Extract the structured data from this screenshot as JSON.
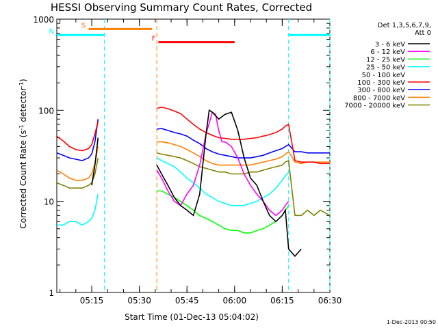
{
  "chart_data": {
    "type": "line",
    "title": "HESSI Observing Summary Count Rates, Corrected",
    "xlabel": "Start Time (01-Dec-13 05:04:02)",
    "ylabel_main": "Corrected Count Rate (s",
    "ylabel_sup1": "-1",
    "ylabel_mid": " detector",
    "ylabel_sup2": "-1",
    "ylabel_end": ")",
    "y_scale": "log",
    "ylim": [
      1,
      1000
    ],
    "xlim_minutes": [
      0,
      86
    ],
    "x_ticks": [
      {
        "t": 11,
        "label": "05:15"
      },
      {
        "t": 26,
        "label": "05:30"
      },
      {
        "t": 41,
        "label": "05:45"
      },
      {
        "t": 56,
        "label": "06:00"
      },
      {
        "t": 71,
        "label": "06:15"
      },
      {
        "t": 86,
        "label": "06:30"
      }
    ],
    "y_ticks": [
      {
        "v": 1,
        "label": "1"
      },
      {
        "v": 10,
        "label": "10"
      },
      {
        "v": 100,
        "label": "100"
      },
      {
        "v": 1000,
        "label": "1000"
      }
    ],
    "legend_header": [
      "Det 1,3,5,6,7,9,",
      "Att 0"
    ],
    "legend_position": "right",
    "footer": "1-Dec-2013 00:50",
    "flags": [
      {
        "label": "S",
        "color": "#ff7f00",
        "start": 10,
        "end": 30,
        "value": 780
      },
      {
        "label": "N",
        "color": "#00ffff",
        "start": 0,
        "end": 15,
        "value": 670
      },
      {
        "label": "F",
        "color": "#ff0000",
        "start": 32,
        "end": 56,
        "value": 560
      },
      {
        "label": "",
        "color": "#00ffff",
        "start": 73,
        "end": 86,
        "value": 670
      }
    ],
    "night_lines": [
      {
        "t": 15,
        "color": "#00ffff"
      },
      {
        "t": 31.5,
        "color": "#ff7f00"
      },
      {
        "t": 73,
        "color": "#00ffff"
      },
      {
        "t": 86,
        "color": "#00ffff"
      }
    ],
    "series": [
      {
        "name": "3 - 6 keV",
        "color": "#000000",
        "x": [
          11,
          12,
          13,
          31.5,
          33,
          35,
          37,
          39,
          41,
          43,
          45,
          47,
          48,
          49,
          51,
          53,
          55,
          57,
          59,
          61,
          63,
          65,
          67,
          69,
          71,
          72,
          73,
          75,
          77
        ],
        "y": [
          15,
          25,
          50,
          25,
          20,
          15,
          11,
          9,
          8,
          7,
          12,
          55,
          100,
          95,
          80,
          90,
          95,
          60,
          30,
          18,
          15,
          10,
          7,
          6,
          7,
          8,
          3,
          2.5,
          3
        ]
      },
      {
        "name": "6 - 12 keV",
        "color": "#ff00ff",
        "x": [
          31.5,
          33,
          35,
          37,
          39,
          41,
          43,
          45,
          47,
          49,
          50,
          51,
          52,
          53,
          55,
          57,
          59,
          61,
          63,
          65,
          67,
          69,
          71,
          72,
          73
        ],
        "y": [
          22,
          18,
          13,
          10,
          9,
          12,
          15,
          25,
          55,
          95,
          90,
          60,
          45,
          45,
          40,
          30,
          20,
          15,
          12,
          10,
          8,
          7,
          8,
          9,
          10
        ]
      },
      {
        "name": "12 - 25 keV",
        "color": "#00ff00",
        "x": [
          31.5,
          33,
          35,
          37,
          39,
          41,
          43,
          45,
          47,
          49,
          51,
          53,
          55,
          57,
          59,
          61,
          63,
          65,
          67,
          69,
          71,
          72,
          73
        ],
        "y": [
          13,
          13,
          12,
          11,
          10,
          9,
          8,
          7,
          6.5,
          6,
          5.5,
          5,
          4.8,
          4.8,
          4.5,
          4.5,
          4.8,
          5,
          5.5,
          6,
          7,
          8,
          9
        ]
      },
      {
        "name": "25 - 50 keV",
        "color": "#00ffff",
        "x": [
          0,
          2,
          4,
          6,
          8,
          10,
          11,
          12,
          13,
          31.5,
          33,
          35,
          37,
          39,
          41,
          43,
          45,
          47,
          49,
          51,
          53,
          55,
          57,
          59,
          61,
          63,
          65,
          67,
          69,
          71,
          72,
          73
        ],
        "y": [
          5.5,
          5.5,
          6,
          6,
          5.5,
          6,
          6.5,
          8,
          12,
          30,
          28,
          26,
          24,
          21,
          18,
          16,
          14,
          12,
          11,
          10,
          9.5,
          9,
          9,
          9,
          9.5,
          10,
          11,
          12,
          14,
          17,
          19,
          21
        ]
      },
      {
        "name": "50 - 100 keV",
        "color": "#ffffff",
        "x": [],
        "y": []
      },
      {
        "name": "100 - 300 keV",
        "color": "#ff0000",
        "x": [
          0,
          2,
          4,
          6,
          8,
          10,
          11,
          12,
          13,
          31.5,
          33,
          35,
          37,
          39,
          41,
          43,
          45,
          47,
          49,
          51,
          53,
          55,
          57,
          59,
          61,
          63,
          65,
          67,
          69,
          71,
          72,
          73,
          75,
          77,
          79,
          81,
          83,
          86
        ],
        "y": [
          52,
          46,
          40,
          37,
          36,
          38,
          42,
          55,
          75,
          105,
          108,
          104,
          98,
          92,
          80,
          70,
          62,
          57,
          53,
          50,
          49,
          48,
          48,
          48,
          49,
          50,
          52,
          54,
          57,
          62,
          67,
          70,
          28,
          27,
          27,
          27,
          26,
          26
        ]
      },
      {
        "name": "300 - 800 keV",
        "color": "#0000ff",
        "x": [
          0,
          2,
          4,
          6,
          8,
          10,
          11,
          12,
          13,
          31.5,
          33,
          35,
          37,
          39,
          41,
          43,
          45,
          47,
          49,
          51,
          53,
          55,
          57,
          59,
          61,
          63,
          65,
          67,
          69,
          71,
          72,
          73,
          75,
          77,
          79,
          81,
          83,
          86
        ],
        "y": [
          34,
          32,
          30,
          29,
          28,
          30,
          33,
          45,
          80,
          62,
          63,
          60,
          57,
          55,
          52,
          47,
          43,
          38,
          35,
          33,
          32,
          31,
          30,
          30,
          30,
          31,
          32,
          34,
          36,
          38,
          40,
          42,
          35,
          35,
          34,
          34,
          34,
          34
        ]
      },
      {
        "name": "800 - 7000 keV",
        "color": "#ff7f00",
        "x": [
          0,
          2,
          4,
          6,
          8,
          10,
          11,
          12,
          13,
          31.5,
          33,
          35,
          37,
          39,
          41,
          43,
          45,
          47,
          49,
          51,
          53,
          55,
          57,
          59,
          61,
          63,
          65,
          67,
          69,
          71,
          72,
          73,
          75,
          77,
          79,
          81,
          83,
          86
        ],
        "y": [
          22,
          20,
          18,
          17,
          17,
          18,
          20,
          26,
          40,
          45,
          45,
          44,
          42,
          40,
          37,
          34,
          31,
          28,
          26,
          25,
          25,
          25,
          25,
          25,
          25,
          26,
          27,
          28,
          29,
          31,
          33,
          35,
          27,
          26,
          27,
          27,
          27,
          27
        ]
      },
      {
        "name": "7000 - 20000 keV",
        "color": "#808000",
        "x": [
          0,
          2,
          4,
          6,
          8,
          10,
          11,
          12,
          13,
          31.5,
          33,
          35,
          37,
          39,
          41,
          43,
          45,
          47,
          49,
          51,
          53,
          55,
          57,
          59,
          61,
          63,
          65,
          67,
          69,
          71,
          72,
          73,
          75,
          77,
          79,
          81,
          83,
          86
        ],
        "y": [
          16,
          15,
          14,
          14,
          14,
          15,
          16,
          20,
          30,
          34,
          33,
          32,
          31,
          30,
          28,
          26,
          24,
          23,
          22,
          21,
          21,
          20,
          20,
          20,
          21,
          21,
          22,
          23,
          24,
          25,
          27,
          28,
          7,
          7,
          8,
          7,
          8,
          7
        ]
      }
    ]
  }
}
